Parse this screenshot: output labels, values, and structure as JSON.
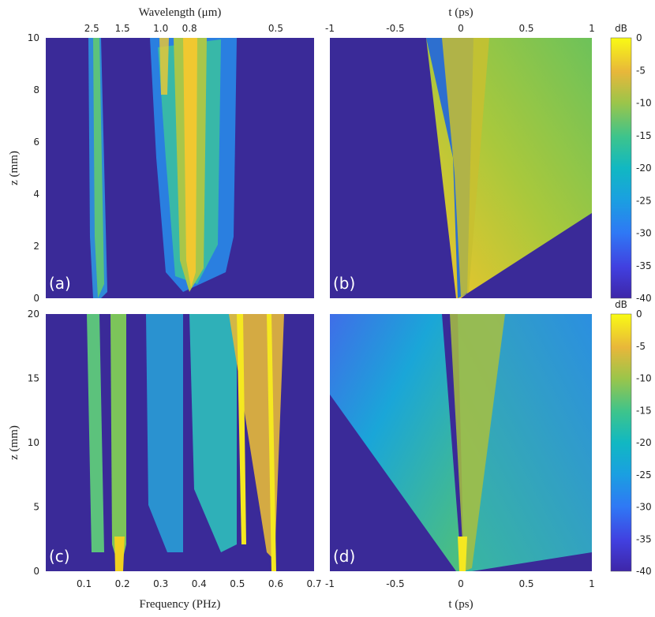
{
  "chart_data": [
    {
      "type": "heatmap",
      "panel_label": "(a)",
      "xlabel": "",
      "ylabel": "z (mm)",
      "top_axis_label": "Wavelength (μm)",
      "top_ticks": [
        "2.5",
        "1.5",
        "1.0",
        "0.8",
        "0.5"
      ],
      "top_tick_frequencies": [
        0.12,
        0.2,
        0.3,
        0.375,
        0.6
      ],
      "xlim": [
        0,
        0.7
      ],
      "ylim": [
        0,
        10
      ],
      "yticks": [
        "0",
        "2",
        "4",
        "6",
        "8",
        "10"
      ],
      "colorbar": {
        "label": "dB",
        "range": [
          -40,
          0
        ],
        "ticks": [
          "0",
          "-5",
          "-10",
          "-15",
          "-20",
          "-25",
          "-30",
          "-35",
          "-40"
        ]
      },
      "bands": [
        {
          "x": 0.15,
          "z_start": 0,
          "z_end": 10,
          "level_db": -15
        },
        {
          "x": 0.35,
          "z_start": 0,
          "z_end": 10,
          "level_db": -10
        },
        {
          "x": 0.38,
          "z_start": 0,
          "z_end": 10,
          "level_db": -5
        }
      ]
    },
    {
      "type": "heatmap",
      "panel_label": "(b)",
      "top_axis_label": "t (ps)",
      "top_ticks": [
        "-1",
        "-0.5",
        "0",
        "0.5",
        "1"
      ],
      "xlim": [
        -1,
        1
      ],
      "ylim": [
        0,
        10
      ],
      "colorbar": {
        "label": "dB",
        "range": [
          -40,
          0
        ],
        "ticks": [
          "0",
          "-5",
          "-10",
          "-15",
          "-20",
          "-25",
          "-30",
          "-35",
          "-40"
        ]
      }
    },
    {
      "type": "heatmap",
      "panel_label": "(c)",
      "xlabel": "Frequency (PHz)",
      "ylabel": "z (mm)",
      "xlim": [
        0,
        0.7
      ],
      "xticks": [
        "0.1",
        "0.2",
        "0.3",
        "0.4",
        "0.5",
        "0.6",
        "0.7"
      ],
      "ylim": [
        0,
        20
      ],
      "yticks": [
        "0",
        "5",
        "10",
        "15",
        "20"
      ],
      "colorbar": {
        "label": "dB",
        "range": [
          -40,
          0
        ],
        "ticks": [
          "0",
          "-5",
          "-10",
          "-15",
          "-20",
          "-25",
          "-30",
          "-35",
          "-40"
        ]
      }
    },
    {
      "type": "heatmap",
      "panel_label": "(d)",
      "xlabel": "t (ps)",
      "xlim": [
        -1,
        1
      ],
      "xticks": [
        "-1",
        "-0.5",
        "0",
        "0.5",
        "1"
      ],
      "ylim": [
        0,
        20
      ],
      "colorbar": {
        "label": "dB",
        "range": [
          -40,
          0
        ],
        "ticks": [
          "0",
          "-5",
          "-10",
          "-15",
          "-20",
          "-25",
          "-30",
          "-35",
          "-40"
        ]
      }
    }
  ],
  "colors": {
    "background": "#3a2a98",
    "low": "#3b2fa0",
    "mid_low": "#2f63d8",
    "mid": "#17a8c2",
    "mid_high": "#7fc24a",
    "high": "#f2d024",
    "peak": "#f9f716"
  }
}
